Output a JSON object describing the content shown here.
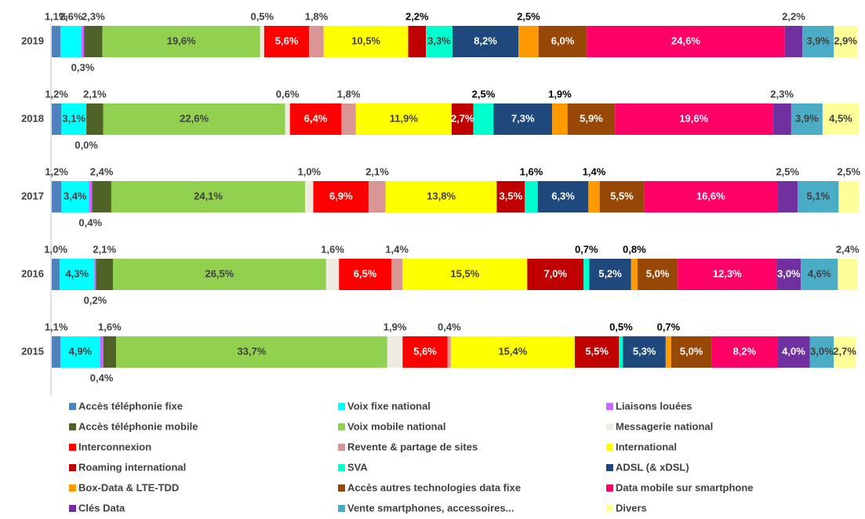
{
  "chart_data": {
    "type": "stacked-barh",
    "categories": [
      "2019",
      "2018",
      "2017",
      "2016",
      "2015"
    ],
    "xlim": [
      0,
      100
    ],
    "series": [
      {
        "name": "Accès téléphonie fixe",
        "color": "#4f81bd",
        "values": [
          1.1,
          1.2,
          1.2,
          1.0,
          1.1
        ],
        "value_labels": [
          "1,1%",
          "1,2%",
          "1,2%",
          "1,0%",
          "1,1%"
        ]
      },
      {
        "name": "Voix fixe national",
        "color": "#00ffff",
        "values": [
          2.6,
          3.1,
          3.4,
          4.3,
          4.9
        ],
        "value_labels": [
          "2,6%",
          "3,1%",
          "3,4%",
          "4,3%",
          "4,9%"
        ]
      },
      {
        "name": "Liaisons louées",
        "color": "#cc66ff",
        "values": [
          0.3,
          0.0,
          0.4,
          0.2,
          0.4
        ],
        "value_labels": [
          "0,3%",
          "0,0%",
          "0,4%",
          "0,2%",
          "0,4%"
        ]
      },
      {
        "name": "Accès téléphonie mobile",
        "color": "#4f6228",
        "values": [
          2.3,
          2.1,
          2.4,
          2.1,
          1.6
        ],
        "value_labels": [
          "2,3%",
          "2,1%",
          "2,4%",
          "2,1%",
          "1,6%"
        ]
      },
      {
        "name": "Voix mobile national",
        "color": "#92d050",
        "values": [
          19.6,
          22.6,
          24.1,
          26.5,
          33.7
        ],
        "value_labels": [
          "19,6%",
          "22,6%",
          "24,1%",
          "26,5%",
          "33,7%"
        ]
      },
      {
        "name": "Messagerie national",
        "color": "#eeece1",
        "values": [
          0.5,
          0.6,
          1.0,
          1.6,
          1.9
        ],
        "value_labels": [
          "0,5%",
          "0,6%",
          "1,0%",
          "1,6%",
          "1,9%"
        ]
      },
      {
        "name": "Interconnexion",
        "color": "#ff0000",
        "values": [
          5.6,
          6.4,
          6.9,
          6.5,
          5.6
        ],
        "value_labels": [
          "5,6%",
          "6,4%",
          "6,9%",
          "6,5%",
          "5,6%"
        ]
      },
      {
        "name": "Revente & partage de sites",
        "color": "#da9694",
        "values": [
          1.8,
          1.8,
          2.1,
          1.4,
          0.4
        ],
        "value_labels": [
          "1,8%",
          "1,8%",
          "2,1%",
          "1,4%",
          "0,4%"
        ]
      },
      {
        "name": "International",
        "color": "#ffff00",
        "values": [
          10.5,
          11.9,
          13.8,
          15.5,
          15.4
        ],
        "value_labels": [
          "10,5%",
          "11,9%",
          "13,8%",
          "15,5%",
          "15,4%"
        ]
      },
      {
        "name": "Roaming international",
        "color": "#c00000",
        "values": [
          2.2,
          2.7,
          3.5,
          7.0,
          5.5
        ],
        "value_labels": [
          "2,2%",
          "2,7%",
          "3,5%",
          "7,0%",
          "5,5%"
        ]
      },
      {
        "name": "SVA",
        "color": "#00ffcc",
        "values": [
          3.3,
          2.5,
          1.6,
          0.7,
          0.5
        ],
        "value_labels": [
          "3,3%",
          "2,5%",
          "1,6%",
          "0,7%",
          "0,5%"
        ]
      },
      {
        "name": "ADSL (& xDSL)",
        "color": "#1f497d",
        "values": [
          8.2,
          7.3,
          6.3,
          5.2,
          5.3
        ],
        "value_labels": [
          "8,2%",
          "7,3%",
          "6,3%",
          "5,2%",
          "5,3%"
        ]
      },
      {
        "name": "Box-Data & LTE-TDD",
        "color": "#ff9900",
        "values": [
          2.5,
          1.9,
          1.4,
          0.8,
          0.7
        ],
        "value_labels": [
          "2,5%",
          "1,9%",
          "1,4%",
          "0,8%",
          "0,7%"
        ]
      },
      {
        "name": "Accès autres technologies data fixe",
        "color": "#974706",
        "values": [
          6.0,
          5.9,
          5.5,
          5.0,
          5.0
        ],
        "value_labels": [
          "6,0%",
          "5,9%",
          "5,5%",
          "5,0%",
          "5,0%"
        ]
      },
      {
        "name": "Data mobile sur smartphone",
        "color": "#ff0066",
        "values": [
          24.6,
          19.6,
          16.6,
          12.3,
          8.2
        ],
        "value_labels": [
          "24,6%",
          "19,6%",
          "16,6%",
          "12,3%",
          "8,2%"
        ]
      },
      {
        "name": "Clés Data",
        "color": "#7030a0",
        "values": [
          2.2,
          2.3,
          2.5,
          3.0,
          4.0
        ],
        "value_labels": [
          "2,2%",
          "2,3%",
          "2,5%",
          "3,0%",
          "4,0%"
        ]
      },
      {
        "name": "Vente smartphones, accessoires...",
        "color": "#4bacc6",
        "values": [
          3.9,
          3.9,
          5.1,
          4.6,
          3.0
        ],
        "value_labels": [
          "3,9%",
          "3,9%",
          "5,1%",
          "4,6%",
          "3,0%"
        ]
      },
      {
        "name": "Divers",
        "color": "#ffff99",
        "values": [
          2.9,
          4.5,
          2.5,
          2.4,
          2.7
        ],
        "value_labels": [
          "2,9%",
          "4,5%",
          "2,5%",
          "2,4%",
          "2,7%"
        ]
      }
    ]
  }
}
